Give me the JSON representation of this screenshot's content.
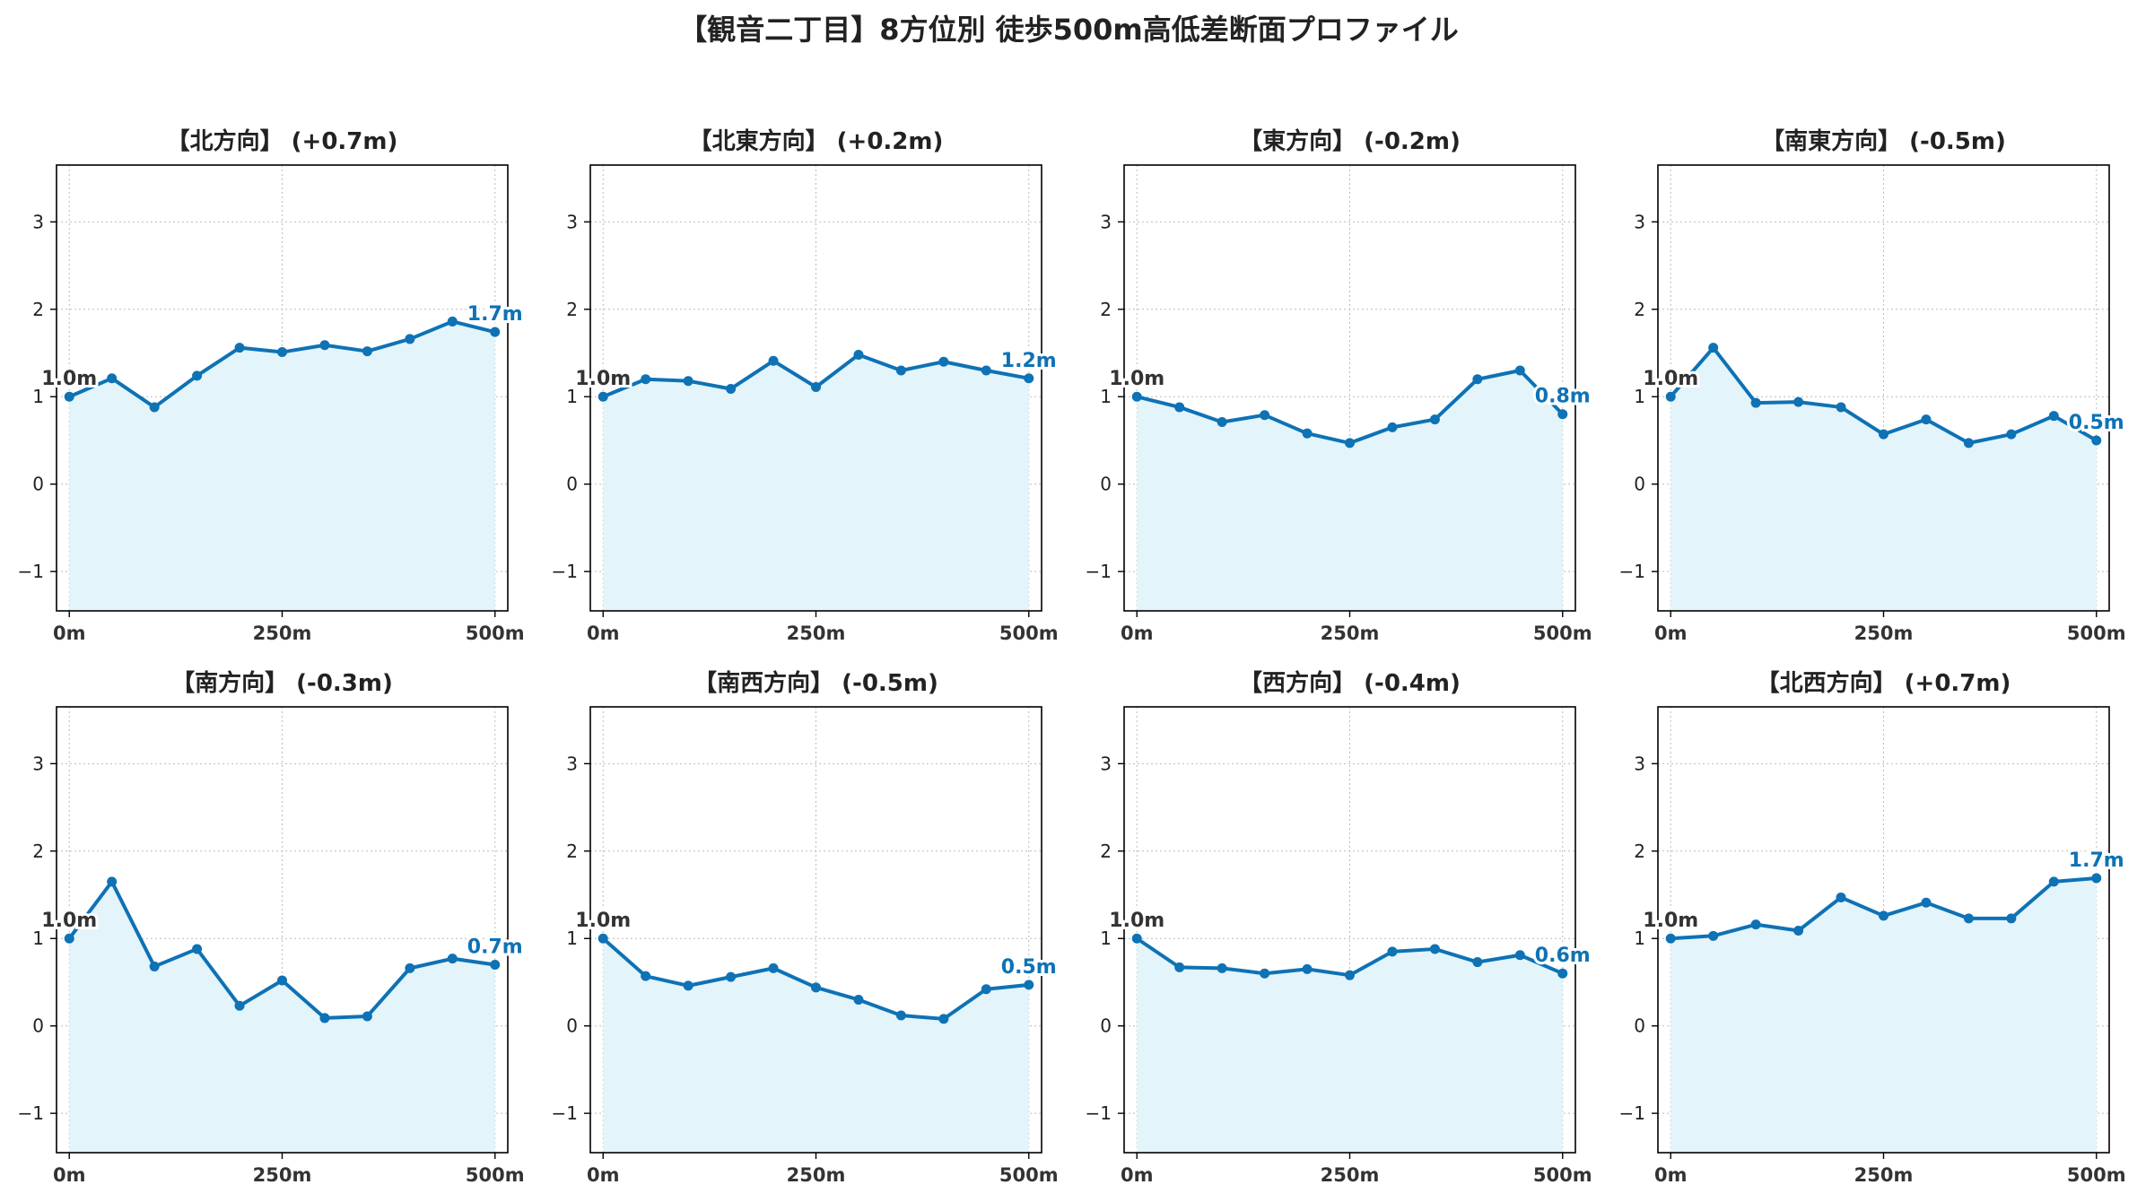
{
  "figure": {
    "title": "【観音二丁目】8方位別 徒歩500m高低差断面プロファイル"
  },
  "style": {
    "line_color": "#0e72b5",
    "fill_color": "#e3f4fa",
    "start_label_color": "#333333",
    "grid_color": "#bbbbbb"
  },
  "chart_data": [
    {
      "type": "area",
      "title": "【北方向】 (+0.7m)",
      "x": [
        0,
        50,
        100,
        150,
        200,
        250,
        300,
        350,
        400,
        450,
        500
      ],
      "values": [
        1.0,
        1.21,
        0.88,
        1.24,
        1.56,
        1.51,
        1.59,
        1.52,
        1.66,
        1.86,
        1.74
      ],
      "start_label": "1.0m",
      "end_label": "1.7m",
      "xticks": [
        0,
        250,
        500
      ],
      "xtick_labels": [
        "0m",
        "250m",
        "500m"
      ],
      "yticks": [
        -1,
        0,
        1,
        2,
        3
      ],
      "ytick_labels": [
        "−1",
        "0",
        "1",
        "2",
        "3"
      ],
      "xlim": [
        -15,
        515
      ],
      "ylim": [
        -1.45,
        3.65
      ],
      "grid": true
    },
    {
      "type": "area",
      "title": "【北東方向】 (+0.2m)",
      "x": [
        0,
        50,
        100,
        150,
        200,
        250,
        300,
        350,
        400,
        450,
        500
      ],
      "values": [
        1.0,
        1.2,
        1.18,
        1.09,
        1.41,
        1.11,
        1.48,
        1.3,
        1.4,
        1.3,
        1.21
      ],
      "start_label": "1.0m",
      "end_label": "1.2m",
      "xticks": [
        0,
        250,
        500
      ],
      "xtick_labels": [
        "0m",
        "250m",
        "500m"
      ],
      "yticks": [
        -1,
        0,
        1,
        2,
        3
      ],
      "ytick_labels": [
        "−1",
        "0",
        "1",
        "2",
        "3"
      ],
      "xlim": [
        -15,
        515
      ],
      "ylim": [
        -1.45,
        3.65
      ],
      "grid": true
    },
    {
      "type": "area",
      "title": "【東方向】 (-0.2m)",
      "x": [
        0,
        50,
        100,
        150,
        200,
        250,
        300,
        350,
        400,
        450,
        500
      ],
      "values": [
        1.0,
        0.88,
        0.71,
        0.79,
        0.58,
        0.47,
        0.65,
        0.74,
        1.2,
        1.3,
        0.8
      ],
      "start_label": "1.0m",
      "end_label": "0.8m",
      "xticks": [
        0,
        250,
        500
      ],
      "xtick_labels": [
        "0m",
        "250m",
        "500m"
      ],
      "yticks": [
        -1,
        0,
        1,
        2,
        3
      ],
      "ytick_labels": [
        "−1",
        "0",
        "1",
        "2",
        "3"
      ],
      "xlim": [
        -15,
        515
      ],
      "ylim": [
        -1.45,
        3.65
      ],
      "grid": true
    },
    {
      "type": "area",
      "title": "【南東方向】 (-0.5m)",
      "x": [
        0,
        50,
        100,
        150,
        200,
        250,
        300,
        350,
        400,
        450,
        500
      ],
      "values": [
        1.0,
        1.56,
        0.93,
        0.94,
        0.88,
        0.57,
        0.74,
        0.47,
        0.57,
        0.78,
        0.5
      ],
      "start_label": "1.0m",
      "end_label": "0.5m",
      "xticks": [
        0,
        250,
        500
      ],
      "xtick_labels": [
        "0m",
        "250m",
        "500m"
      ],
      "yticks": [
        -1,
        0,
        1,
        2,
        3
      ],
      "ytick_labels": [
        "−1",
        "0",
        "1",
        "2",
        "3"
      ],
      "xlim": [
        -15,
        515
      ],
      "ylim": [
        -1.45,
        3.65
      ],
      "grid": true
    },
    {
      "type": "area",
      "title": "【南方向】 (-0.3m)",
      "x": [
        0,
        50,
        100,
        150,
        200,
        250,
        300,
        350,
        400,
        450,
        500
      ],
      "values": [
        1.0,
        1.65,
        0.68,
        0.88,
        0.23,
        0.52,
        0.09,
        0.11,
        0.66,
        0.77,
        0.7
      ],
      "start_label": "1.0m",
      "end_label": "0.7m",
      "xticks": [
        0,
        250,
        500
      ],
      "xtick_labels": [
        "0m",
        "250m",
        "500m"
      ],
      "yticks": [
        -1,
        0,
        1,
        2,
        3
      ],
      "ytick_labels": [
        "−1",
        "0",
        "1",
        "2",
        "3"
      ],
      "xlim": [
        -15,
        515
      ],
      "ylim": [
        -1.45,
        3.65
      ],
      "grid": true
    },
    {
      "type": "area",
      "title": "【南西方向】 (-0.5m)",
      "x": [
        0,
        50,
        100,
        150,
        200,
        250,
        300,
        350,
        400,
        450,
        500
      ],
      "values": [
        1.0,
        0.57,
        0.46,
        0.56,
        0.66,
        0.44,
        0.3,
        0.12,
        0.08,
        0.42,
        0.47
      ],
      "start_label": "1.0m",
      "end_label": "0.5m",
      "xticks": [
        0,
        250,
        500
      ],
      "xtick_labels": [
        "0m",
        "250m",
        "500m"
      ],
      "yticks": [
        -1,
        0,
        1,
        2,
        3
      ],
      "ytick_labels": [
        "−1",
        "0",
        "1",
        "2",
        "3"
      ],
      "xlim": [
        -15,
        515
      ],
      "ylim": [
        -1.45,
        3.65
      ],
      "grid": true
    },
    {
      "type": "area",
      "title": "【西方向】 (-0.4m)",
      "x": [
        0,
        50,
        100,
        150,
        200,
        250,
        300,
        350,
        400,
        450,
        500
      ],
      "values": [
        1.0,
        0.67,
        0.66,
        0.6,
        0.65,
        0.58,
        0.85,
        0.88,
        0.73,
        0.81,
        0.6
      ],
      "start_label": "1.0m",
      "end_label": "0.6m",
      "xticks": [
        0,
        250,
        500
      ],
      "xtick_labels": [
        "0m",
        "250m",
        "500m"
      ],
      "yticks": [
        -1,
        0,
        1,
        2,
        3
      ],
      "ytick_labels": [
        "−1",
        "0",
        "1",
        "2",
        "3"
      ],
      "xlim": [
        -15,
        515
      ],
      "ylim": [
        -1.45,
        3.65
      ],
      "grid": true
    },
    {
      "type": "area",
      "title": "【北西方向】 (+0.7m)",
      "x": [
        0,
        50,
        100,
        150,
        200,
        250,
        300,
        350,
        400,
        450,
        500
      ],
      "values": [
        1.0,
        1.03,
        1.16,
        1.09,
        1.47,
        1.26,
        1.41,
        1.23,
        1.23,
        1.65,
        1.69
      ],
      "start_label": "1.0m",
      "end_label": "1.7m",
      "xticks": [
        0,
        250,
        500
      ],
      "xtick_labels": [
        "0m",
        "250m",
        "500m"
      ],
      "yticks": [
        -1,
        0,
        1,
        2,
        3
      ],
      "ytick_labels": [
        "−1",
        "0",
        "1",
        "2",
        "3"
      ],
      "xlim": [
        -15,
        515
      ],
      "ylim": [
        -1.45,
        3.65
      ],
      "grid": true
    }
  ]
}
